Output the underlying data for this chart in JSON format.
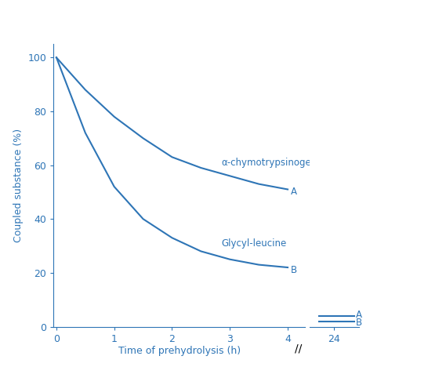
{
  "line_color": "#2e75b6",
  "axis_label_color": "#2e75b6",
  "tick_color": "#2e75b6",
  "spine_color": "#2e75b6",
  "background_color": "#ffffff",
  "ylabel": "Coupled substance (%)",
  "xlabel": "Time of prehydrolysis (h)",
  "ylim": [
    0,
    105
  ],
  "yticks": [
    0,
    20,
    40,
    60,
    80,
    100
  ],
  "xticks_main": [
    0,
    1,
    2,
    3,
    4
  ],
  "xtick_24": 24,
  "curve_A_x": [
    0,
    0.5,
    1,
    1.5,
    2,
    2.5,
    3,
    3.5,
    4
  ],
  "curve_A_y": [
    100,
    88,
    78,
    70,
    63,
    59,
    56,
    53,
    51
  ],
  "curve_B_x": [
    0,
    0.5,
    1,
    1.5,
    2,
    2.5,
    3,
    3.5,
    4
  ],
  "curve_B_y": [
    100,
    72,
    52,
    40,
    33,
    28,
    25,
    23,
    22
  ],
  "point_A_24_y": 4,
  "point_B_24_y": 2,
  "label_A": "A",
  "label_B": "B",
  "annotation_A": "α-chymotrypsinogen",
  "annotation_B": "Glycyl-leucine"
}
